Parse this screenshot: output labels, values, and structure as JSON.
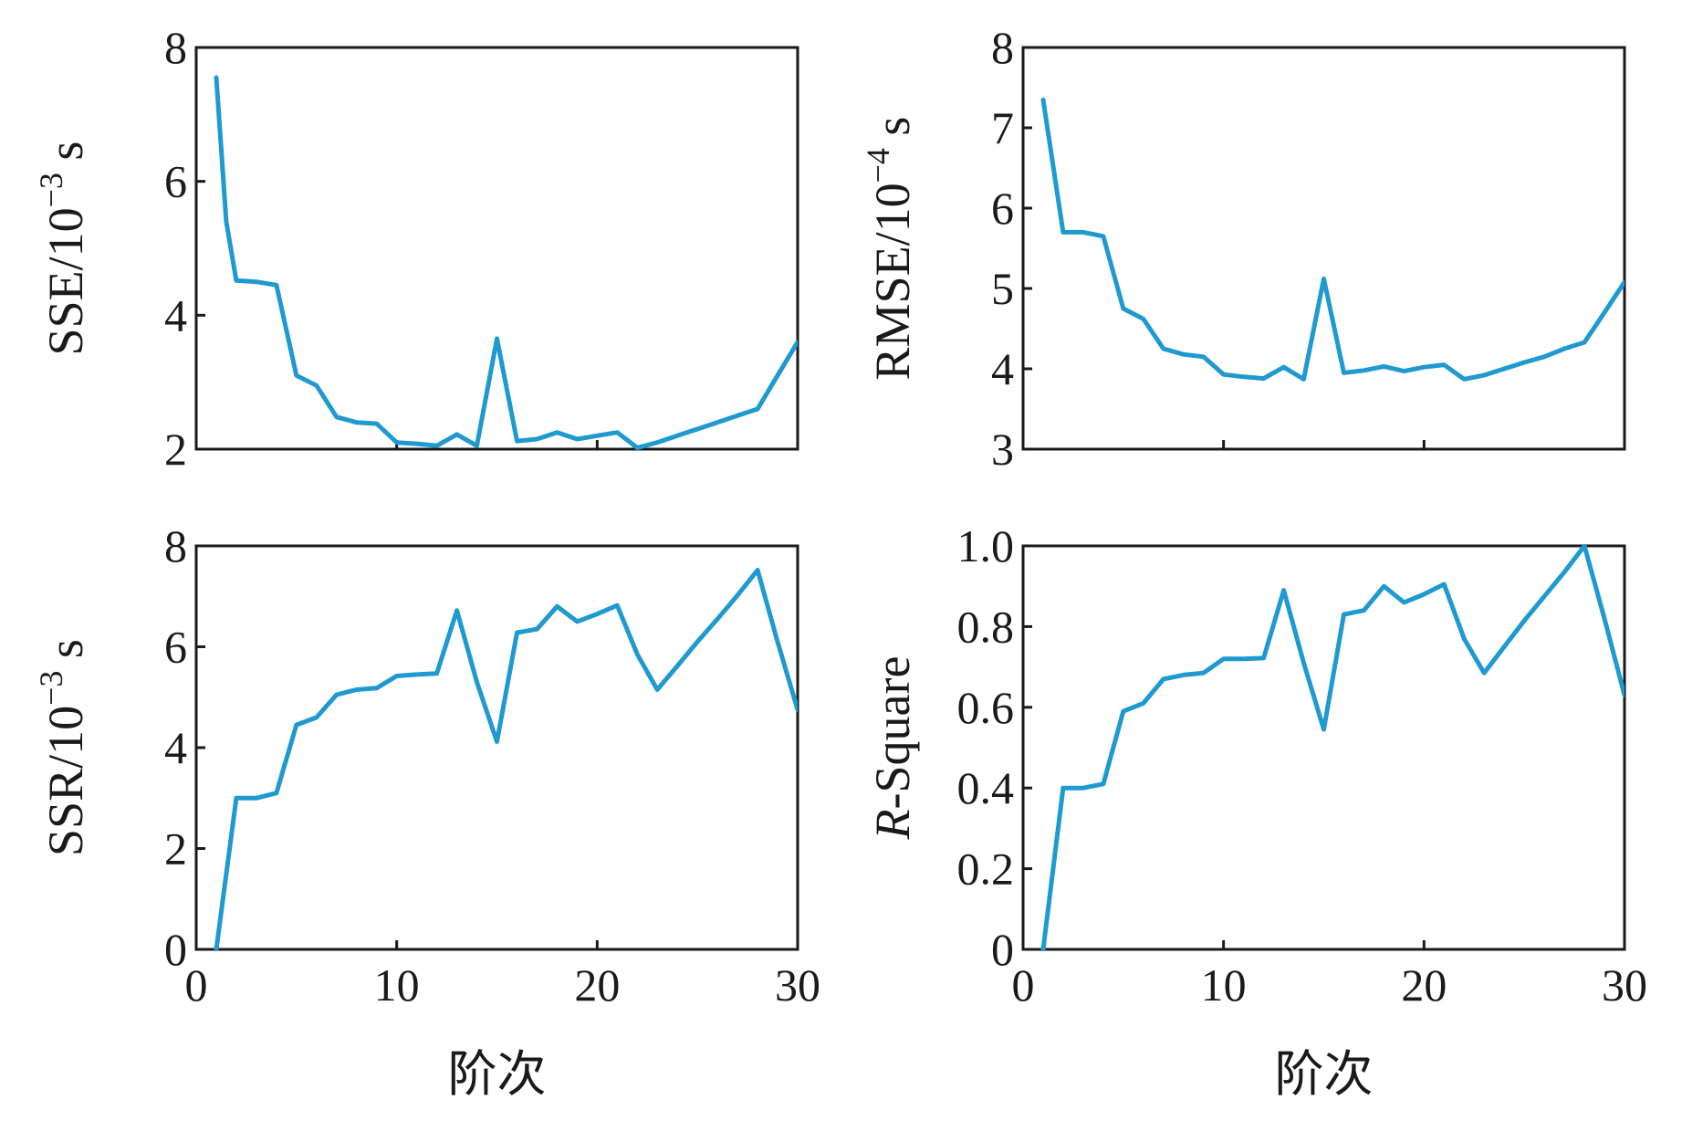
{
  "colors": {
    "line": "#1f9ad0",
    "axis": "#1a1a1a"
  },
  "chart_data": [
    {
      "type": "line",
      "title": "",
      "xlabel": "",
      "ylabel": "SSE/10<sup>−3</sup> s",
      "ylabel_main": "SSE/10",
      "ylabel_sup": "−3",
      "ylabel_unit": "s",
      "xlim": [
        0,
        30
      ],
      "ylim": [
        2,
        8
      ],
      "xticks": [],
      "yticks": [
        2,
        4,
        6,
        8
      ],
      "yticks_labels": [
        "2",
        "4",
        "6",
        "8"
      ],
      "xticks_minor": [
        10,
        20
      ],
      "series": [
        {
          "name": "SSE",
          "x": [
            1,
            1.5,
            2,
            3,
            4,
            5,
            6,
            7,
            8,
            9,
            10,
            11,
            12,
            13,
            14,
            15,
            16,
            17,
            18,
            19,
            20,
            21,
            22,
            23,
            24,
            25,
            26,
            27,
            28,
            29,
            30
          ],
          "y": [
            7.55,
            5.4,
            4.52,
            4.5,
            4.45,
            3.1,
            2.95,
            2.48,
            2.4,
            2.38,
            2.1,
            2.08,
            2.05,
            2.22,
            2.05,
            3.65,
            2.12,
            2.15,
            2.25,
            2.15,
            2.2,
            2.25,
            2.02,
            2.1,
            2.2,
            2.3,
            2.4,
            2.5,
            2.6,
            3.1,
            3.6
          ]
        }
      ]
    },
    {
      "type": "line",
      "title": "",
      "xlabel": "",
      "ylabel_main": "RMSE/10",
      "ylabel_sup": "−4",
      "ylabel_unit": "s",
      "xlim": [
        0,
        30
      ],
      "ylim": [
        3,
        8
      ],
      "yticks": [
        3,
        4,
        5,
        6,
        7,
        8
      ],
      "yticks_labels": [
        "3",
        "4",
        "5",
        "6",
        "7",
        "8"
      ],
      "xticks_minor": [
        10,
        20
      ],
      "series": [
        {
          "name": "RMSE",
          "x": [
            1,
            2,
            3,
            4,
            5,
            6,
            7,
            8,
            9,
            10,
            11,
            12,
            13,
            14,
            15,
            16,
            17,
            18,
            19,
            20,
            21,
            22,
            23,
            24,
            25,
            26,
            27,
            28,
            29,
            30
          ],
          "y": [
            7.35,
            5.7,
            5.7,
            5.65,
            4.75,
            4.62,
            4.25,
            4.18,
            4.15,
            3.93,
            3.9,
            3.88,
            4.02,
            3.87,
            5.12,
            3.95,
            3.98,
            4.03,
            3.97,
            4.02,
            4.05,
            3.87,
            3.92,
            4.0,
            4.08,
            4.15,
            4.25,
            4.33,
            4.7,
            5.08
          ]
        }
      ]
    },
    {
      "type": "line",
      "title": "",
      "xlabel": "阶次",
      "ylabel_main": "SSR/10",
      "ylabel_sup": "−3",
      "ylabel_unit": "s",
      "xlim": [
        0,
        30
      ],
      "ylim": [
        0,
        8
      ],
      "xticks": [
        0,
        10,
        20,
        30
      ],
      "xticks_labels": [
        "0",
        "10",
        "20",
        "30"
      ],
      "yticks": [
        0,
        2,
        4,
        6,
        8
      ],
      "yticks_labels": [
        "0",
        "2",
        "4",
        "6",
        "8"
      ],
      "series": [
        {
          "name": "SSR",
          "x": [
            1,
            2,
            3,
            4,
            5,
            6,
            7,
            8,
            9,
            10,
            11,
            12,
            13,
            14,
            15,
            16,
            17,
            18,
            19,
            20,
            21,
            22,
            23,
            24,
            25,
            26,
            27,
            28,
            29,
            30
          ],
          "y": [
            0,
            3.0,
            3.0,
            3.1,
            4.45,
            4.6,
            5.05,
            5.15,
            5.18,
            5.42,
            5.45,
            5.47,
            6.72,
            5.3,
            4.12,
            6.28,
            6.35,
            6.8,
            6.5,
            6.65,
            6.82,
            5.85,
            5.15,
            5.62,
            6.1,
            6.55,
            7.02,
            7.52,
            6.1,
            4.75
          ]
        }
      ]
    },
    {
      "type": "line",
      "title": "",
      "xlabel": "阶次",
      "ylabel_italic": "R",
      "ylabel_rest": "-Square",
      "xlim": [
        0,
        30
      ],
      "ylim": [
        0,
        1.0
      ],
      "xticks": [
        0,
        10,
        20,
        30
      ],
      "xticks_labels": [
        "0",
        "10",
        "20",
        "30"
      ],
      "yticks": [
        0,
        0.2,
        0.4,
        0.6,
        0.8,
        1.0
      ],
      "yticks_labels": [
        "0",
        "0.2",
        "0.4",
        "0.6",
        "0.8",
        "1.0"
      ],
      "series": [
        {
          "name": "R-Square",
          "x": [
            1,
            2,
            3,
            4,
            5,
            6,
            7,
            8,
            9,
            10,
            11,
            12,
            13,
            14,
            15,
            16,
            17,
            18,
            19,
            20,
            21,
            22,
            23,
            24,
            25,
            26,
            27,
            28,
            29,
            30
          ],
          "y": [
            0,
            0.4,
            0.4,
            0.41,
            0.59,
            0.61,
            0.67,
            0.68,
            0.685,
            0.72,
            0.72,
            0.722,
            0.89,
            0.71,
            0.545,
            0.83,
            0.84,
            0.9,
            0.86,
            0.88,
            0.905,
            0.77,
            0.685,
            0.75,
            0.815,
            0.875,
            0.935,
            1.0,
            0.82,
            0.63
          ]
        }
      ]
    }
  ]
}
